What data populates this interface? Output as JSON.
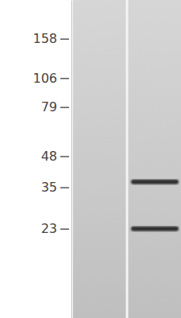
{
  "chart_data": {
    "type": "blot",
    "log": "y",
    "ylim": [
      9.3,
      234
    ],
    "yticks": [
      158,
      106,
      79,
      48,
      35,
      23
    ],
    "categories": [
      null,
      null
    ],
    "lanes": [
      {
        "bands": []
      },
      {
        "bands": [
          37,
          23
        ]
      }
    ]
  }
}
